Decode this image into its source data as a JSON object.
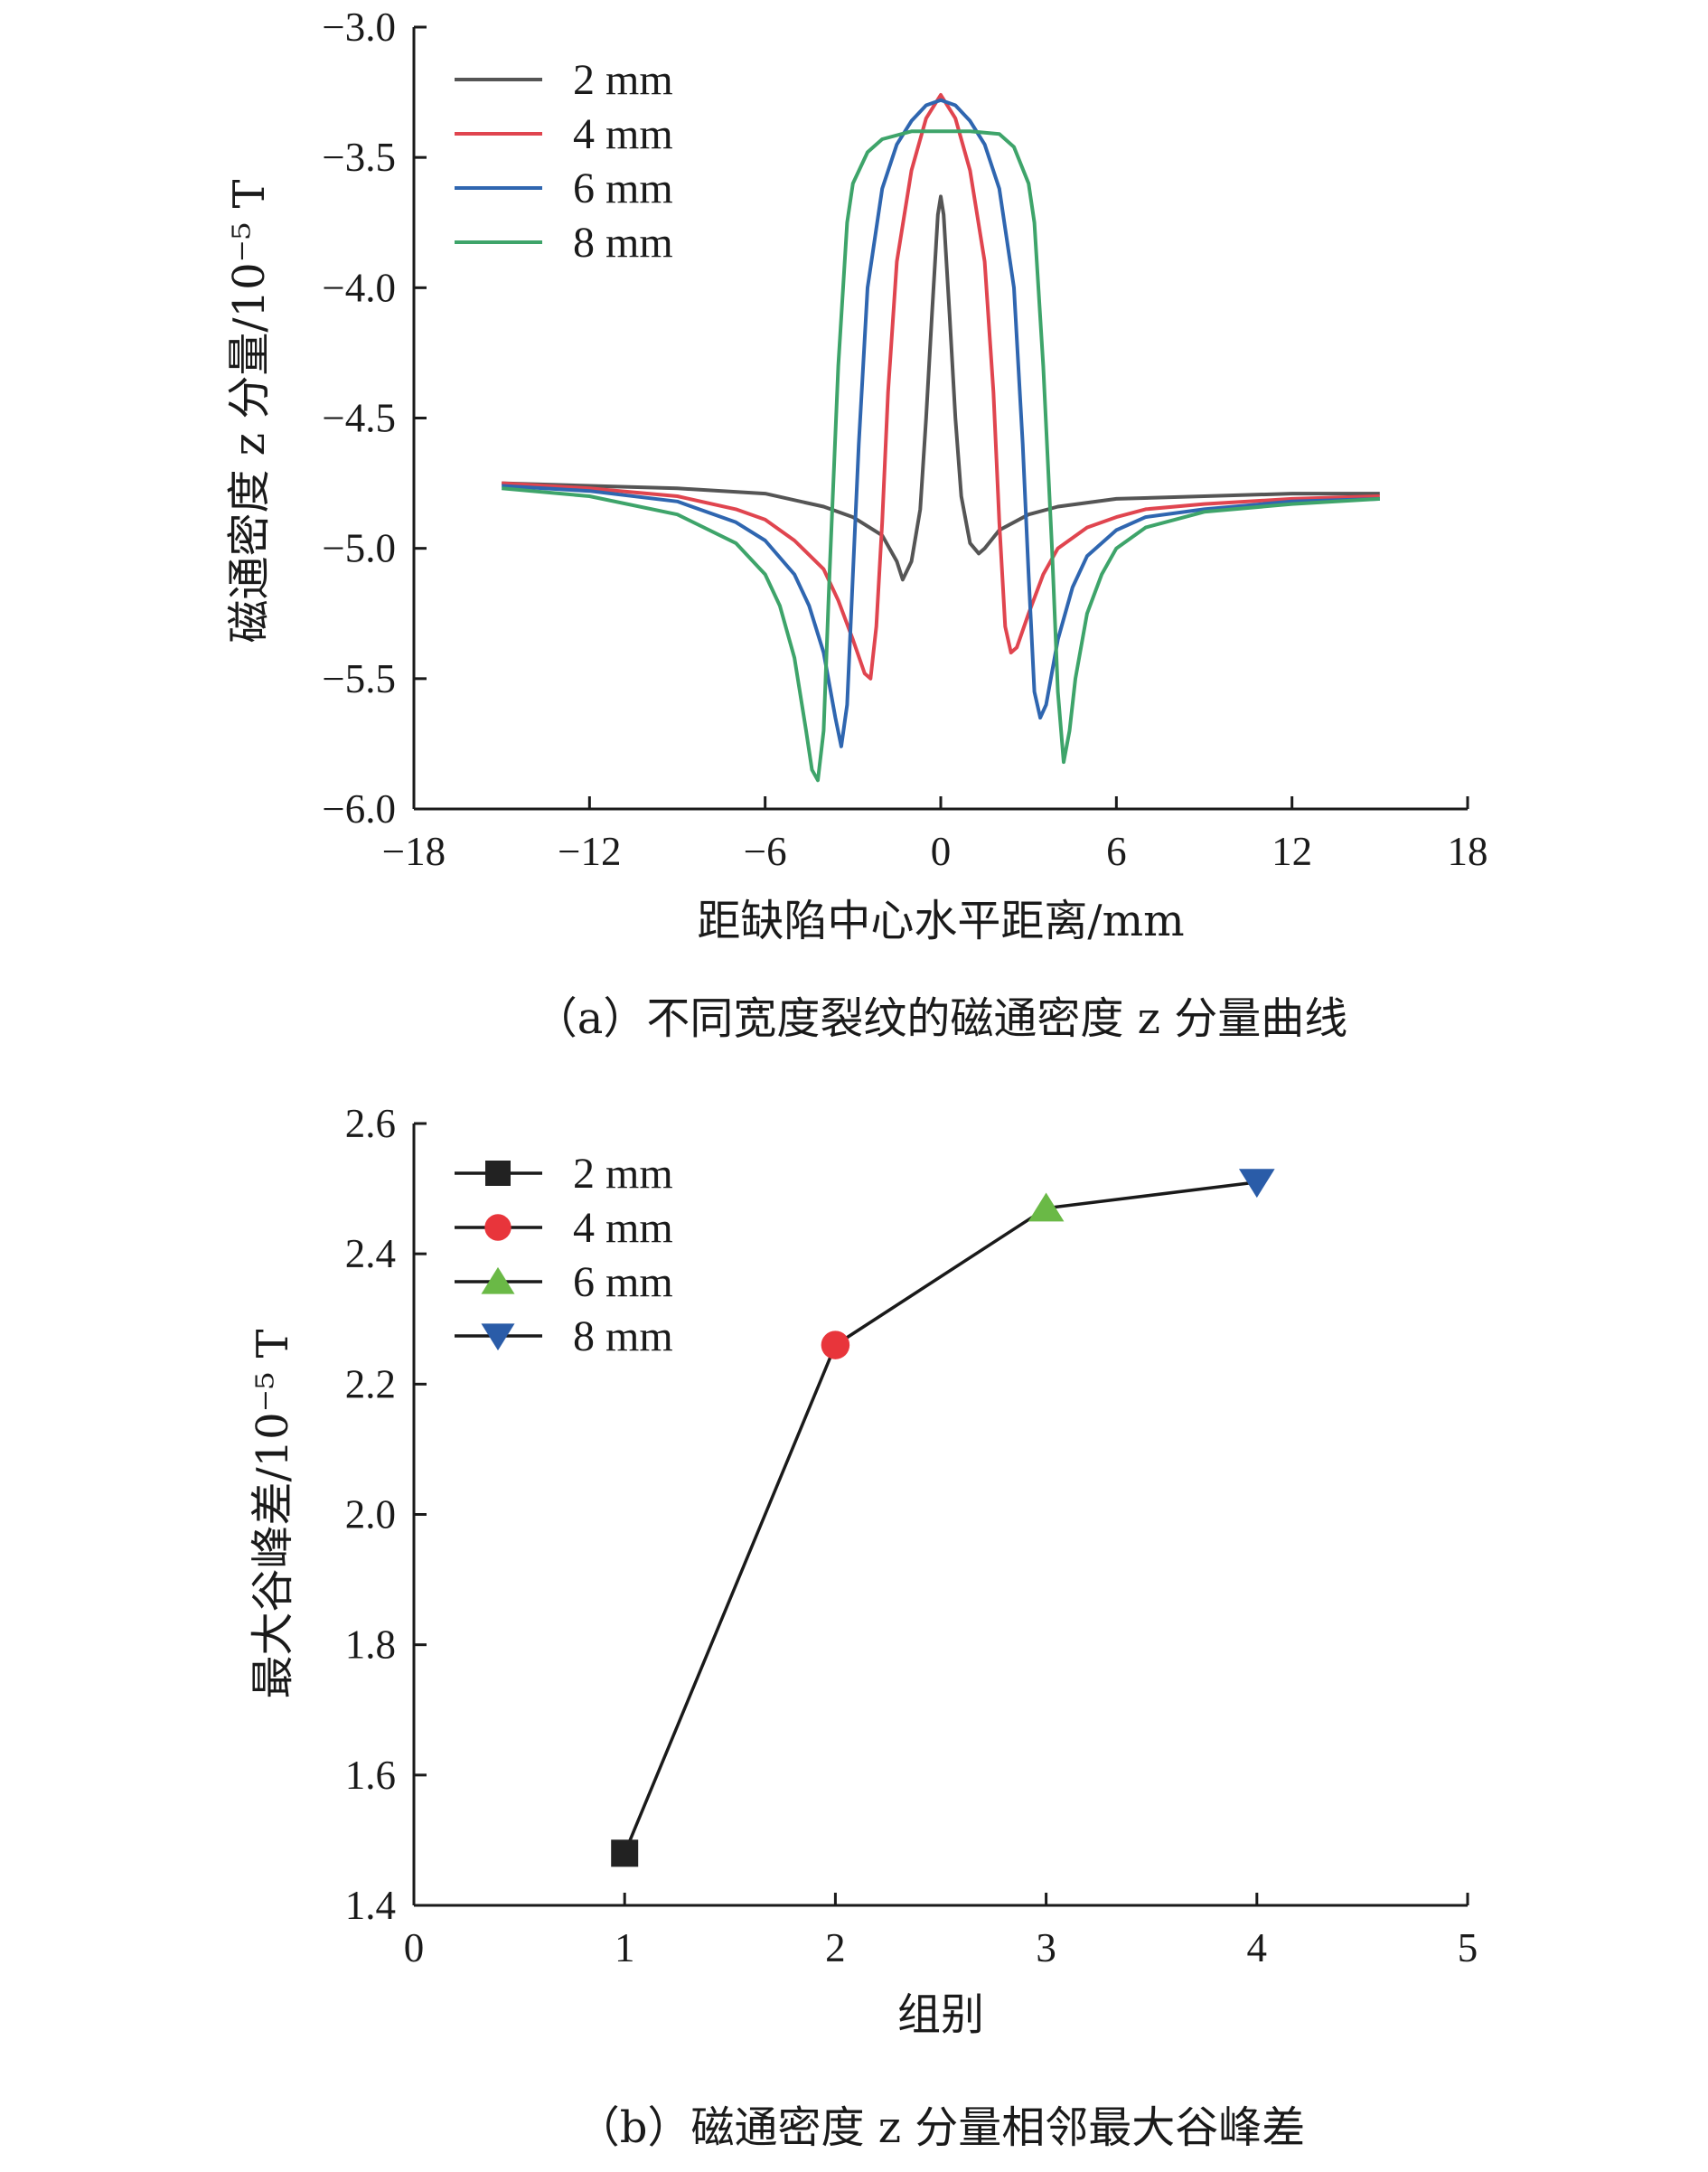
{
  "chart_data": [
    {
      "type": "line",
      "panel": "a",
      "caption": "（a）不同宽度裂纹的磁通密度 z 分量曲线",
      "xlabel": "距缺陷中心水平距离/mm",
      "ylabel": "磁通密度 z 分量/10⁻⁵ T",
      "xlim": [
        -18,
        18
      ],
      "ylim": [
        -6.0,
        -3.0
      ],
      "xticks": [
        "−18",
        "−12",
        "−6",
        "0",
        "6",
        "12",
        "18"
      ],
      "yticks": [
        "−3.0",
        "−3.5",
        "−4.0",
        "−4.5",
        "−5.0",
        "−5.5",
        "−6.0"
      ],
      "legend_position": "top-left",
      "series": [
        {
          "name": "2 mm",
          "color": "#555555",
          "x": [
            -15,
            -12,
            -9,
            -6,
            -4,
            -3,
            -2,
            -1.5,
            -1.3,
            -1.0,
            -0.7,
            -0.5,
            -0.3,
            -0.1,
            0,
            0.1,
            0.3,
            0.5,
            0.7,
            1.0,
            1.3,
            1.5,
            2,
            3,
            4,
            6,
            9,
            12,
            15
          ],
          "y": [
            -4.75,
            -4.76,
            -4.77,
            -4.79,
            -4.84,
            -4.88,
            -4.95,
            -5.05,
            -5.12,
            -5.05,
            -4.85,
            -4.5,
            -4.1,
            -3.72,
            -3.65,
            -3.72,
            -4.1,
            -4.5,
            -4.8,
            -4.98,
            -5.02,
            -5.0,
            -4.93,
            -4.87,
            -4.84,
            -4.81,
            -4.8,
            -4.79,
            -4.79
          ]
        },
        {
          "name": "4 mm",
          "color": "#e0454f",
          "x": [
            -15,
            -12,
            -9,
            -7,
            -6,
            -5,
            -4,
            -3.5,
            -3,
            -2.6,
            -2.4,
            -2.2,
            -2.0,
            -1.8,
            -1.5,
            -1,
            -0.5,
            0,
            0.5,
            1,
            1.5,
            1.8,
            2.0,
            2.2,
            2.4,
            2.6,
            3,
            3.5,
            4,
            5,
            6,
            7,
            9,
            12,
            15
          ],
          "y": [
            -4.75,
            -4.77,
            -4.8,
            -4.85,
            -4.89,
            -4.97,
            -5.08,
            -5.2,
            -5.35,
            -5.48,
            -5.5,
            -5.3,
            -4.9,
            -4.4,
            -3.9,
            -3.55,
            -3.35,
            -3.26,
            -3.35,
            -3.55,
            -3.9,
            -4.4,
            -4.9,
            -5.3,
            -5.4,
            -5.38,
            -5.25,
            -5.1,
            -5.0,
            -4.92,
            -4.88,
            -4.85,
            -4.83,
            -4.81,
            -4.8
          ]
        },
        {
          "name": "6 mm",
          "color": "#2f66b0",
          "x": [
            -15,
            -12,
            -9,
            -7,
            -6,
            -5,
            -4.5,
            -4,
            -3.6,
            -3.4,
            -3.2,
            -3.0,
            -2.8,
            -2.5,
            -2,
            -1.5,
            -1,
            -0.5,
            0,
            0.5,
            1,
            1.5,
            2,
            2.5,
            2.8,
            3.0,
            3.2,
            3.4,
            3.6,
            4,
            4.5,
            5,
            6,
            7,
            9,
            12,
            15
          ],
          "y": [
            -4.76,
            -4.78,
            -4.82,
            -4.9,
            -4.97,
            -5.1,
            -5.22,
            -5.4,
            -5.65,
            -5.76,
            -5.6,
            -5.1,
            -4.6,
            -4.0,
            -3.62,
            -3.45,
            -3.36,
            -3.3,
            -3.28,
            -3.3,
            -3.36,
            -3.45,
            -3.62,
            -4.0,
            -4.6,
            -5.1,
            -5.55,
            -5.65,
            -5.6,
            -5.35,
            -5.15,
            -5.03,
            -4.93,
            -4.88,
            -4.85,
            -4.82,
            -4.81
          ]
        },
        {
          "name": "8 mm",
          "color": "#3ea46a",
          "x": [
            -15,
            -12,
            -9,
            -7,
            -6,
            -5.5,
            -5,
            -4.6,
            -4.4,
            -4.2,
            -4.0,
            -3.8,
            -3.5,
            -3.2,
            -3,
            -2.5,
            -2,
            -1,
            0,
            1,
            2,
            2.5,
            3,
            3.2,
            3.5,
            3.8,
            4.0,
            4.2,
            4.4,
            4.6,
            5,
            5.5,
            6,
            7,
            9,
            12,
            15
          ],
          "y": [
            -4.77,
            -4.8,
            -4.87,
            -4.98,
            -5.1,
            -5.22,
            -5.42,
            -5.7,
            -5.85,
            -5.89,
            -5.7,
            -5.1,
            -4.3,
            -3.75,
            -3.6,
            -3.48,
            -3.43,
            -3.4,
            -3.4,
            -3.4,
            -3.41,
            -3.46,
            -3.6,
            -3.75,
            -4.3,
            -5.0,
            -5.55,
            -5.82,
            -5.7,
            -5.5,
            -5.25,
            -5.1,
            -5.0,
            -4.92,
            -4.86,
            -4.83,
            -4.81
          ]
        }
      ]
    },
    {
      "type": "line",
      "panel": "b",
      "caption": "（b）磁通密度 z 分量相邻最大谷峰差",
      "xlabel": "组别",
      "ylabel": "最大谷峰差/10⁻⁵ T",
      "xlim": [
        0,
        5
      ],
      "ylim": [
        1.4,
        2.6
      ],
      "xticks": [
        "0",
        "1",
        "2",
        "3",
        "4",
        "5"
      ],
      "yticks": [
        "2.6",
        "2.4",
        "2.2",
        "2.0",
        "1.8",
        "1.6",
        "1.4"
      ],
      "legend_position": "top-left",
      "line_color": "#1a1a1a",
      "points": [
        {
          "name": "2 mm",
          "x": 1,
          "y": 1.48,
          "marker": "square",
          "color": "#222222"
        },
        {
          "name": "4 mm",
          "x": 2,
          "y": 2.26,
          "marker": "circle",
          "color": "#e8353b"
        },
        {
          "name": "6 mm",
          "x": 3,
          "y": 2.47,
          "marker": "triangle-up",
          "color": "#6ab946"
        },
        {
          "name": "8 mm",
          "x": 4,
          "y": 2.51,
          "marker": "triangle-down",
          "color": "#2a5ca8"
        }
      ]
    }
  ]
}
